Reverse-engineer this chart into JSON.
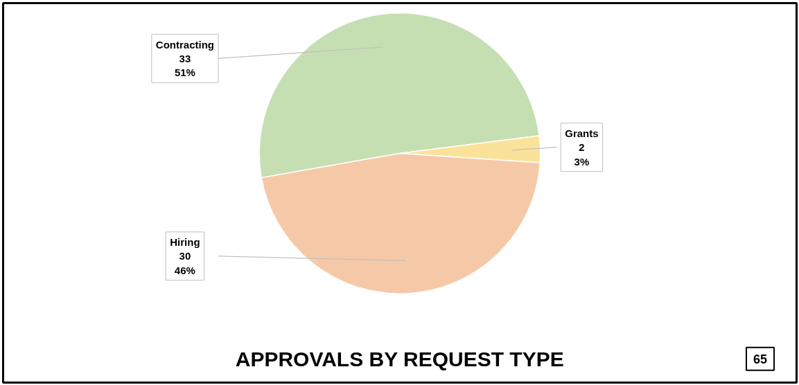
{
  "chart_data": {
    "type": "pie",
    "title": "APPROVALS BY REQUEST TYPE",
    "categories": [
      "Contracting",
      "Grants",
      "Hiring"
    ],
    "values": [
      33,
      2,
      30
    ],
    "colors": [
      "#c5dfb3",
      "#fbe29a",
      "#f5c9a8"
    ],
    "value_labels": [
      "33\n51%",
      "2\n3%",
      "30\n46%"
    ],
    "annotations": [
      "65"
    ]
  }
}
